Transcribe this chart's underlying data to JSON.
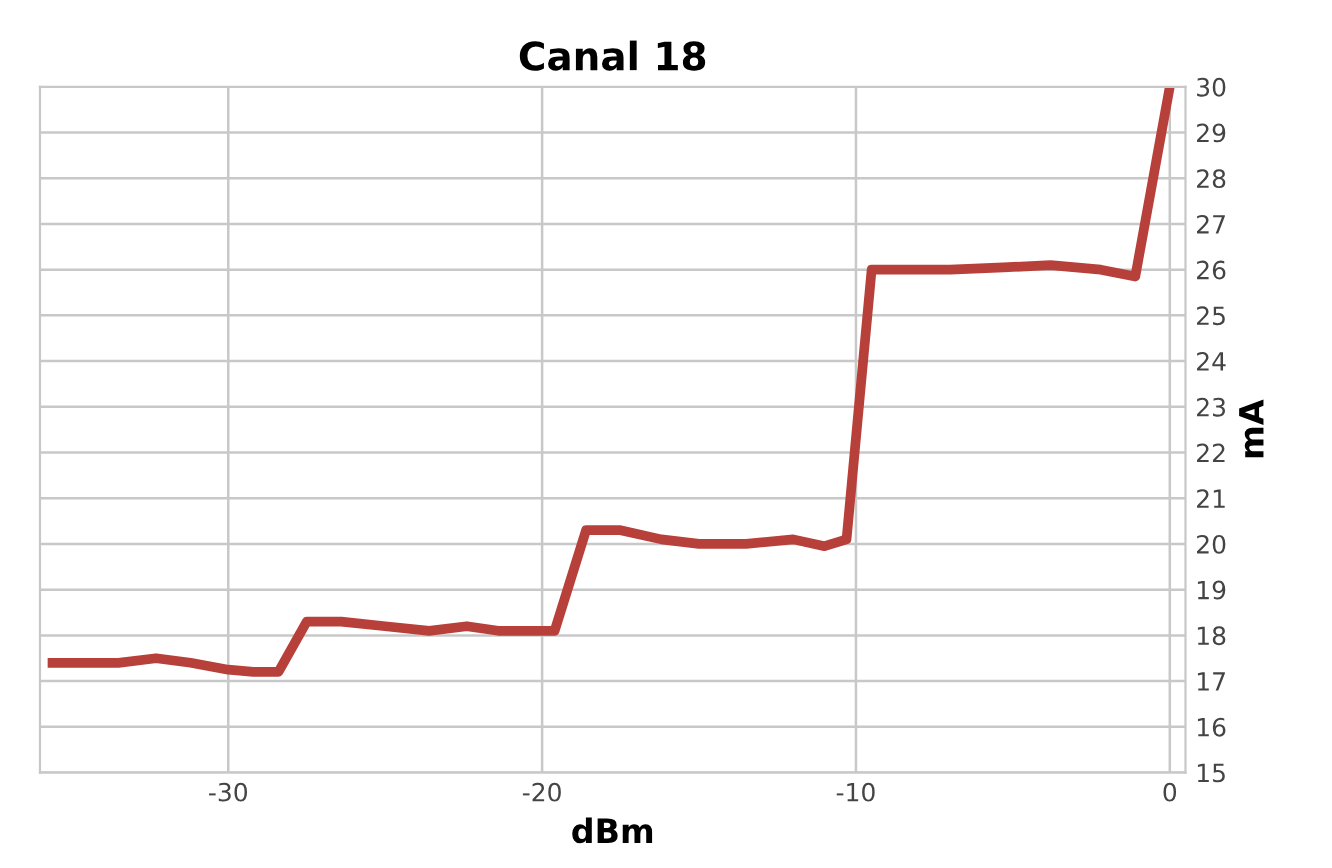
{
  "chart_data": {
    "type": "line",
    "title": "Canal 18",
    "xlabel": "dBm",
    "ylabel": "mA",
    "series": [
      {
        "color": "#b8403a",
        "x": [
          -35.6,
          -33.5,
          -32.3,
          -31.2,
          -30,
          -29.2,
          -28.4,
          -27.5,
          -26.4,
          -25,
          -23.6,
          -22.4,
          -21.4,
          -19.6,
          -18.6,
          -17.5,
          -16.2,
          -15,
          -13.5,
          -12,
          -11,
          -10.3,
          -9.5,
          -7,
          -5.3,
          -3.8,
          -2.2,
          -1.1,
          0
        ],
        "values": [
          17.4,
          17.4,
          17.5,
          17.4,
          17.25,
          17.2,
          17.2,
          18.3,
          18.3,
          18.2,
          18.1,
          18.2,
          18.1,
          18.1,
          20.3,
          20.3,
          20.1,
          20,
          20,
          20.1,
          19.95,
          20.1,
          26,
          26,
          26.05,
          26.1,
          26,
          25.85,
          30
        ]
      }
    ],
    "xlim": [
      -36,
      0.5
    ],
    "xticks": [
      -30,
      -20,
      -10,
      0
    ],
    "ylim": [
      15,
      30
    ],
    "yticks": [
      15,
      16,
      17,
      18,
      19,
      20,
      21,
      22,
      23,
      24,
      25,
      26,
      27,
      28,
      29,
      30
    ],
    "grid": true,
    "line_style": "solid",
    "marker": "none"
  }
}
